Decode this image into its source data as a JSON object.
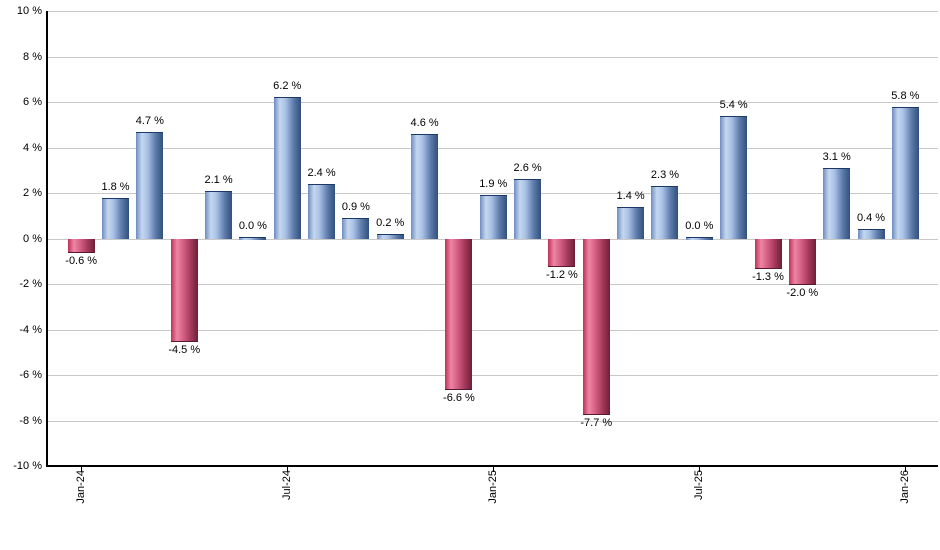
{
  "chart_data": {
    "type": "bar",
    "title": "",
    "xlabel": "",
    "ylabel": "",
    "unit": "%",
    "ylim": [
      -10,
      10
    ],
    "y_tick_step": 2,
    "grid": true,
    "legend": null,
    "y_tick_labels": [
      "10 %",
      "8 %",
      "6 %",
      "4 %",
      "2 %",
      "0 %",
      "-2 %",
      "-4 %",
      "-6 %",
      "-8 %",
      "-10 %"
    ],
    "x_tick_labels": [
      "Jan-24",
      "Jul-24",
      "Jan-25",
      "Jul-25",
      "Jan-26"
    ],
    "x_tick_bar_indices": [
      0,
      6,
      12,
      18,
      24
    ],
    "values": [
      -0.6,
      1.8,
      4.7,
      -4.5,
      2.1,
      0.0,
      6.2,
      2.4,
      0.9,
      0.2,
      4.6,
      -6.6,
      1.9,
      2.6,
      -1.2,
      -7.7,
      1.4,
      2.3,
      0.0,
      5.4,
      -1.3,
      -2.0,
      3.1,
      0.4,
      5.8
    ],
    "bar_labels": [
      "-0.6 %",
      "1.8 %",
      "4.7 %",
      "-4.5 %",
      "2.1 %",
      "0.0 %",
      "6.2 %",
      "2.4 %",
      "0.9 %",
      "0.2 %",
      "4.6 %",
      "-6.6 %",
      "1.9 %",
      "2.6 %",
      "-1.2 %",
      "-7.7 %",
      "1.4 %",
      "2.3 %",
      "0.0 %",
      "5.4 %",
      "-1.3 %",
      "-2.0 %",
      "3.1 %",
      "0.4 %",
      "5.8 %"
    ],
    "colors": {
      "positive_bar": "#7d9cce",
      "positive_bar_highlight": "#c5d7f0",
      "positive_bar_dark": "#34507b",
      "negative_bar": "#c8315a",
      "negative_bar_highlight": "#ec86a3",
      "negative_bar_dark": "#6e1f37",
      "gridline": "#c9c9c9",
      "axis": "#000000",
      "label_text": "#000000",
      "background": "#ffffff"
    }
  }
}
